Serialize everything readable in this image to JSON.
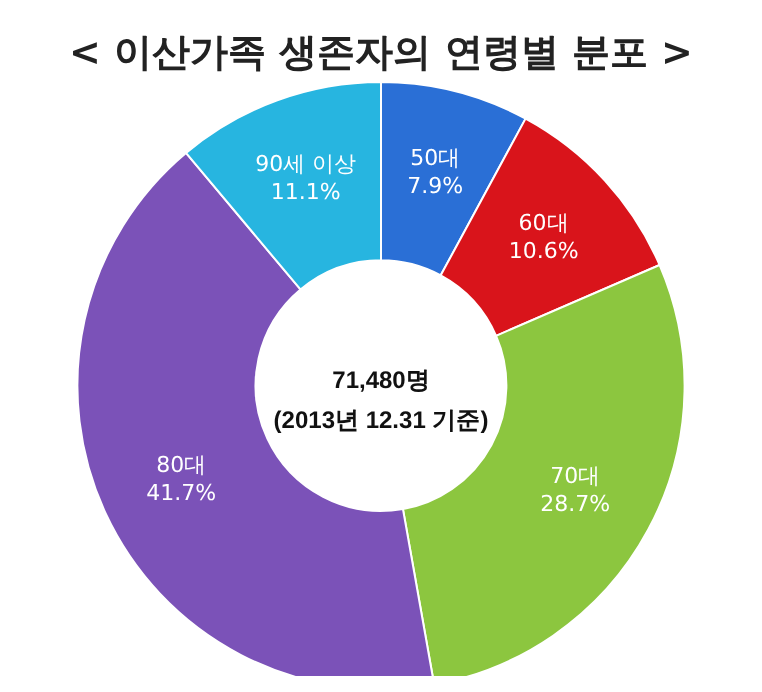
{
  "chart_data": {
    "type": "donut",
    "title": "< 이산가족 생존자의 연령별 분포 >",
    "categories": [
      "50대",
      "60대",
      "70대",
      "80대",
      "90세 이상"
    ],
    "values": [
      7.9,
      10.6,
      28.7,
      41.7,
      11.1
    ],
    "colors": [
      "#2a6fd6",
      "#d9141b",
      "#8cc63f",
      "#7b52b8",
      "#27b5e0"
    ],
    "value_labels": [
      "7.9%",
      "10.6%",
      "28.7%",
      "41.7%",
      "11.1%"
    ],
    "legend": false,
    "annotations": [
      "71,480명",
      "(2013년 12.31 기준)"
    ]
  }
}
